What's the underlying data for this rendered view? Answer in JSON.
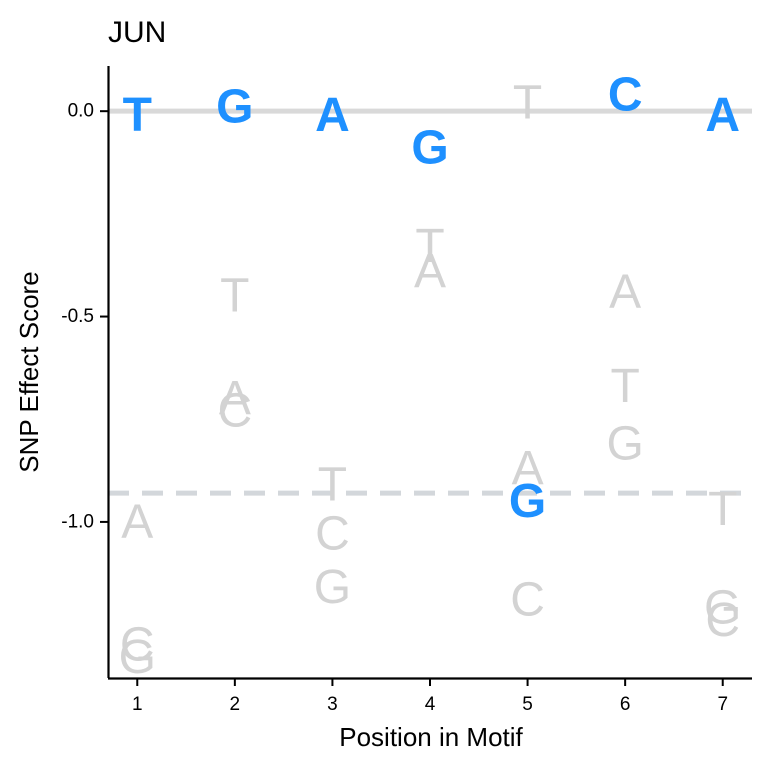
{
  "chart_data": {
    "type": "scatter",
    "title": "JUN",
    "xlabel": "Position in Motif",
    "ylabel": "SNP Effect Score",
    "x_ticks": [
      1,
      2,
      3,
      4,
      5,
      6,
      7
    ],
    "y_ticks": [
      0.0,
      -0.5,
      -1.0
    ],
    "y_tick_labels": [
      "0.0",
      "-0.5",
      "-1.0"
    ],
    "xlim": [
      0.7,
      7.3
    ],
    "ylim": [
      -1.38,
      0.11
    ],
    "reference_line_y": 0.0,
    "threshold_line_y": -0.93,
    "grid": false,
    "colors": {
      "highlight": "#1E90FF",
      "other": "#D3D3D3",
      "ref_line": "#D9D9D9",
      "threshold_line": "#D3D7DB"
    },
    "points": [
      {
        "x": 1,
        "y": -0.01,
        "label": "T",
        "highlight": true
      },
      {
        "x": 1,
        "y": -1.0,
        "label": "A",
        "highlight": false
      },
      {
        "x": 1,
        "y": -1.3,
        "label": "C",
        "highlight": false
      },
      {
        "x": 1,
        "y": -1.33,
        "label": "G",
        "highlight": false
      },
      {
        "x": 2,
        "y": 0.01,
        "label": "G",
        "highlight": true
      },
      {
        "x": 2,
        "y": -0.45,
        "label": "T",
        "highlight": false
      },
      {
        "x": 2,
        "y": -0.7,
        "label": "A",
        "highlight": false
      },
      {
        "x": 2,
        "y": -0.73,
        "label": "C",
        "highlight": false
      },
      {
        "x": 3,
        "y": -0.01,
        "label": "A",
        "highlight": true
      },
      {
        "x": 3,
        "y": -0.91,
        "label": "T",
        "highlight": false
      },
      {
        "x": 3,
        "y": -1.03,
        "label": "C",
        "highlight": false
      },
      {
        "x": 3,
        "y": -1.16,
        "label": "G",
        "highlight": false
      },
      {
        "x": 4,
        "y": -0.09,
        "label": "G",
        "highlight": true
      },
      {
        "x": 4,
        "y": -0.33,
        "label": "T",
        "highlight": false
      },
      {
        "x": 4,
        "y": -0.39,
        "label": "A",
        "highlight": false
      },
      {
        "x": 5,
        "y": 0.02,
        "label": "T",
        "highlight": false
      },
      {
        "x": 5,
        "y": -0.87,
        "label": "A",
        "highlight": false
      },
      {
        "x": 5,
        "y": -0.95,
        "label": "G",
        "highlight": true
      },
      {
        "x": 5,
        "y": -1.19,
        "label": "C",
        "highlight": false
      },
      {
        "x": 6,
        "y": 0.04,
        "label": "C",
        "highlight": true
      },
      {
        "x": 6,
        "y": -0.44,
        "label": "A",
        "highlight": false
      },
      {
        "x": 6,
        "y": -0.67,
        "label": "T",
        "highlight": false
      },
      {
        "x": 6,
        "y": -0.81,
        "label": "G",
        "highlight": false
      },
      {
        "x": 7,
        "y": -0.01,
        "label": "A",
        "highlight": true
      },
      {
        "x": 7,
        "y": -0.97,
        "label": "T",
        "highlight": false
      },
      {
        "x": 7,
        "y": -1.21,
        "label": "G",
        "highlight": false
      },
      {
        "x": 7,
        "y": -1.24,
        "label": "C",
        "highlight": false
      }
    ]
  }
}
